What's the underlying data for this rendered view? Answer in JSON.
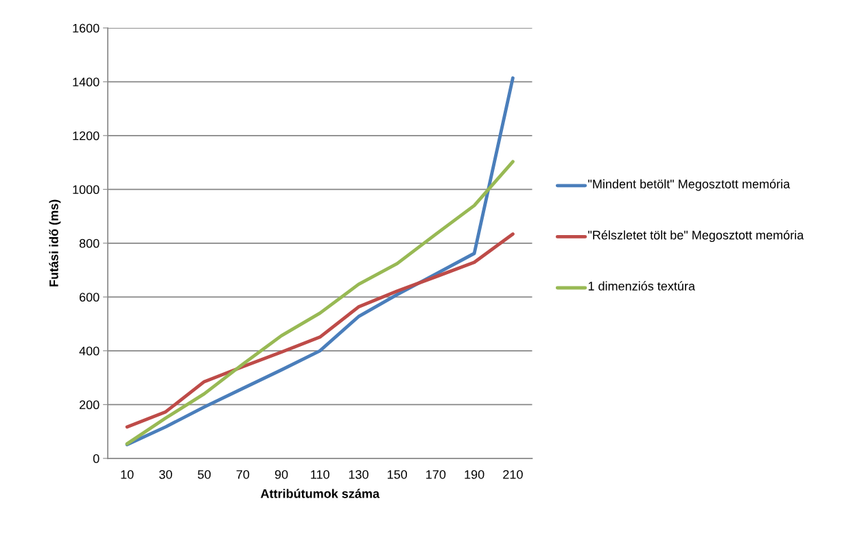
{
  "chart_data": {
    "type": "line",
    "xlabel": "Attribútumok száma",
    "ylabel": "Futási idő (ms)",
    "categories": [
      "10",
      "30",
      "50",
      "70",
      "90",
      "110",
      "130",
      "150",
      "170",
      "190",
      "210"
    ],
    "series": [
      {
        "name": "\"Mindent betölt\" Megosztott memória",
        "color": "#4a7ebb",
        "values": [
          51,
          117,
          191,
          260,
          329,
          400,
          527,
          609,
          685,
          762,
          1414
        ]
      },
      {
        "name": "\"Rélszletet tölt be\" Megosztott memória",
        "color": "#be4b48",
        "values": [
          117,
          173,
          285,
          341,
          395,
          451,
          563,
          622,
          675,
          729,
          834
        ]
      },
      {
        "name": "1 dimenziós textúra",
        "color": "#98b954",
        "values": [
          54,
          150,
          240,
          350,
          456,
          540,
          647,
          724,
          833,
          940,
          1103
        ]
      }
    ],
    "ylim": [
      0,
      1600
    ],
    "yticks": [
      0,
      200,
      400,
      600,
      800,
      1000,
      1200,
      1400,
      1600
    ],
    "grid": "y",
    "legend": "right",
    "marker": "none",
    "line_style": "solid"
  }
}
